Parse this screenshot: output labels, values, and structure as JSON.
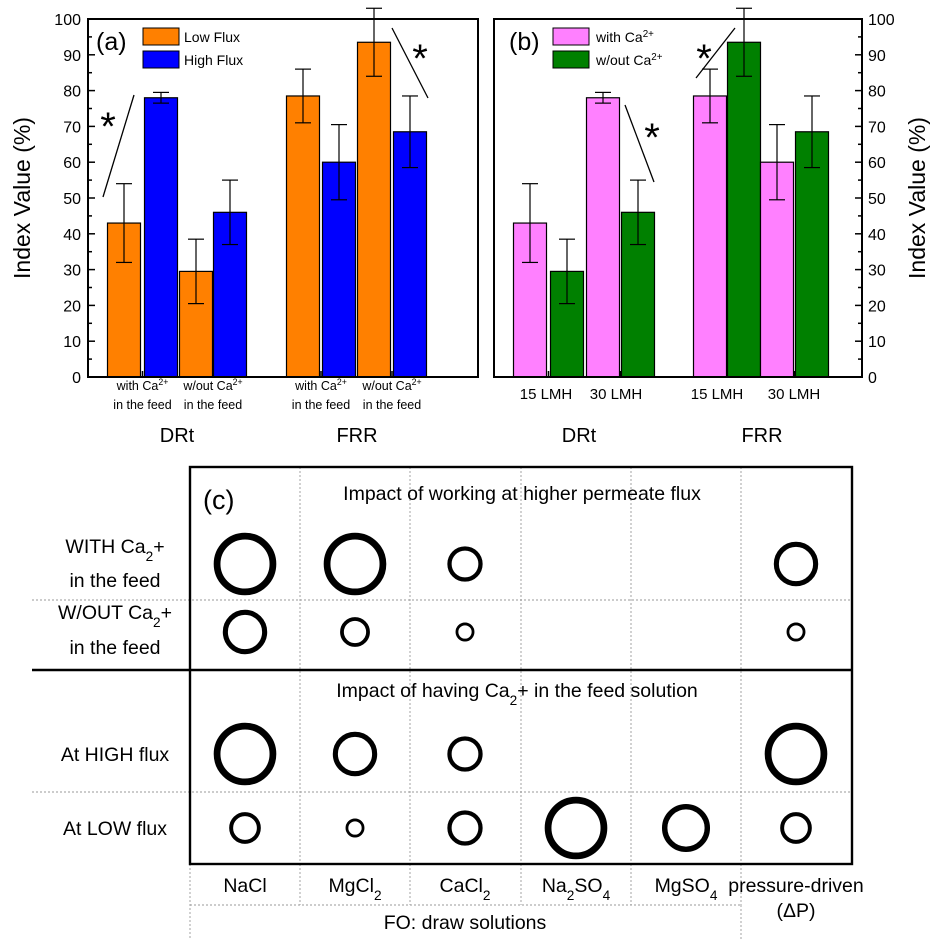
{
  "chart_data": [
    {
      "type": "bar",
      "panel_label": "(a)",
      "ylabel": "Index Value  (%)",
      "ylim": [
        0,
        100
      ],
      "yticks": [
        0,
        10,
        20,
        30,
        40,
        50,
        60,
        70,
        80,
        90,
        100
      ],
      "groups": [
        "DRt",
        "FRR"
      ],
      "categories": [
        {
          "group": "DRt",
          "lines": [
            "with Ca 2+",
            "in the feed"
          ]
        },
        {
          "group": "DRt",
          "lines": [
            "w/out Ca 2+",
            "in the feed"
          ]
        },
        {
          "group": "FRR",
          "lines": [
            "with Ca 2+",
            "in the feed"
          ]
        },
        {
          "group": "FRR",
          "lines": [
            "w/out Ca 2+",
            "in the feed"
          ]
        }
      ],
      "series": [
        {
          "name": "Low Flux",
          "color": "#ff8000",
          "values": [
            43,
            29.5,
            78.5,
            93.5
          ],
          "errors": [
            11,
            9,
            7.5,
            9.5
          ]
        },
        {
          "name": "High Flux",
          "color": "#0000ff",
          "values": [
            78,
            46,
            60,
            68.5
          ],
          "errors": [
            1.5,
            9,
            10.5,
            10
          ]
        }
      ],
      "annotations": [
        "*",
        "*"
      ],
      "legend_position": "top-left"
    },
    {
      "type": "bar",
      "panel_label": "(b)",
      "ylabel": "Index Value  (%)",
      "ylim": [
        0,
        100
      ],
      "yticks": [
        0,
        10,
        20,
        30,
        40,
        50,
        60,
        70,
        80,
        90,
        100
      ],
      "groups": [
        "DRt",
        "FRR"
      ],
      "categories": [
        {
          "group": "DRt",
          "lines": [
            "15 LMH"
          ]
        },
        {
          "group": "DRt",
          "lines": [
            "30 LMH"
          ]
        },
        {
          "group": "FRR",
          "lines": [
            "15 LMH"
          ]
        },
        {
          "group": "FRR",
          "lines": [
            "30 LMH"
          ]
        }
      ],
      "series": [
        {
          "name": "with Ca 2+",
          "color": "#ff80ff",
          "values": [
            43,
            78,
            78.5,
            60
          ],
          "errors": [
            11,
            1.5,
            7.5,
            10.5
          ]
        },
        {
          "name": "w/out Ca 2+",
          "color": "#008000",
          "values": [
            29.5,
            46,
            93.5,
            68.5
          ],
          "errors": [
            9,
            9,
            9.5,
            10
          ]
        }
      ],
      "annotations": [
        "*",
        "*"
      ],
      "legend_position": "top-left"
    },
    {
      "type": "table",
      "panel_label": "(c)",
      "columns": [
        "NaCl",
        "MgCl2",
        "CaCl2",
        "Na2SO4",
        "MgSO4",
        "pressure-driven (ΔP)"
      ],
      "column_group": "FO: draw solutions",
      "section_titles": [
        "Impact of working at higher permeate flux",
        "Impact of having Ca2+ in the feed solution"
      ],
      "rows": [
        {
          "label": [
            "WITH Ca2+",
            "in the feed"
          ],
          "circle_sizes": [
            3,
            3,
            1.5,
            0,
            0,
            2
          ]
        },
        {
          "label": [
            "W/OUT Ca2+",
            "in the feed"
          ],
          "circle_sizes": [
            2,
            1.2,
            0.6,
            0,
            0,
            0.6
          ]
        },
        {
          "label": [
            "At HIGH flux"
          ],
          "circle_sizes": [
            3,
            2,
            1.5,
            0,
            0,
            3
          ]
        },
        {
          "label": [
            "At LOW flux"
          ],
          "circle_sizes": [
            1.3,
            0.6,
            1.5,
            3,
            2.2,
            1.3
          ]
        }
      ]
    }
  ]
}
